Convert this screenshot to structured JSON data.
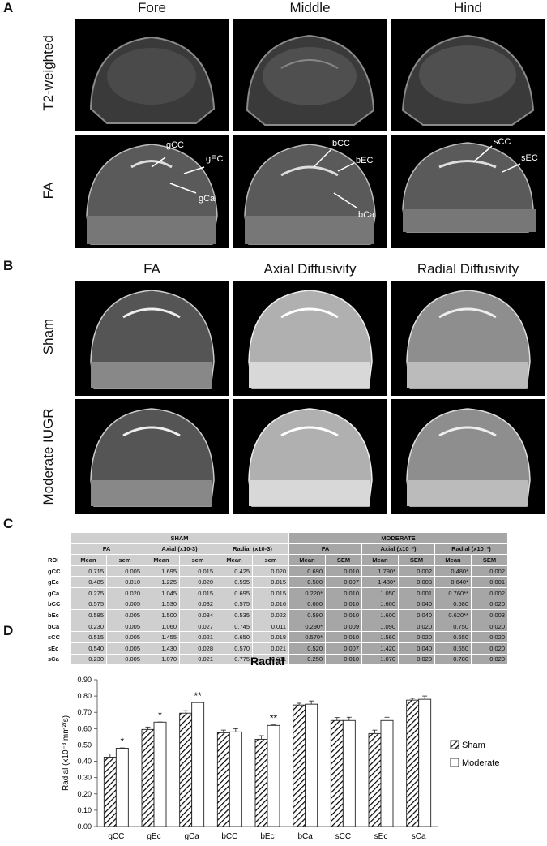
{
  "panel_labels": [
    "A",
    "B",
    "C",
    "D"
  ],
  "section_a": {
    "columns": [
      "Fore",
      "Middle",
      "Hind"
    ],
    "rows": [
      "T2-weighted",
      "FA"
    ],
    "annotations": {
      "fore": [
        "gCC",
        "gEC",
        "gCa"
      ],
      "middle": [
        "bCC",
        "bEC",
        "bCa"
      ],
      "hind": [
        "sCC",
        "sEC"
      ]
    }
  },
  "section_b": {
    "columns": [
      "FA",
      "Axial Diffusivity",
      "Radial Diffusivity"
    ],
    "rows": [
      "Sham",
      "Moderate IUGR"
    ]
  },
  "table": {
    "group_headers": [
      "SHAM",
      "MODERATE"
    ],
    "sham_metrics": [
      "FA",
      "Axial (x10-3)",
      "Radial (x10-3)"
    ],
    "moderate_metrics": [
      "FA",
      "Axial (x10⁻³)",
      "Radial (x10⁻³)"
    ],
    "sham_sub": [
      "Mean",
      "sem"
    ],
    "moderate_sub": [
      "Mean",
      "SEM"
    ],
    "roi_header": "ROI",
    "rows": [
      {
        "roi": "gCC",
        "sham": [
          "0.715",
          "0.005",
          "1.695",
          "0.015",
          "0.425",
          "0.020"
        ],
        "mod": [
          "0.690",
          "0.010",
          "1.790*",
          "0.002",
          "0.480*",
          "0.002"
        ]
      },
      {
        "roi": "gEc",
        "sham": [
          "0.485",
          "0.010",
          "1.225",
          "0.020",
          "0.595",
          "0.015"
        ],
        "mod": [
          "0.500",
          "0.007",
          "1.430*",
          "0.003",
          "0.640*",
          "0.001"
        ]
      },
      {
        "roi": "gCa",
        "sham": [
          "0.275",
          "0.020",
          "1.045",
          "0.015",
          "0.695",
          "0.015"
        ],
        "mod": [
          "0.220*",
          "0.010",
          "1.050",
          "0.001",
          "0.760**",
          "0.002"
        ]
      },
      {
        "roi": "bCC",
        "sham": [
          "0.575",
          "0.005",
          "1.530",
          "0.032",
          "0.575",
          "0.016"
        ],
        "mod": [
          "0.600",
          "0.010",
          "1.600",
          "0.040",
          "0.580",
          "0.020"
        ]
      },
      {
        "roi": "bEc",
        "sham": [
          "0.585",
          "0.005",
          "1.500",
          "0.034",
          "0.535",
          "0.022"
        ],
        "mod": [
          "0.590",
          "0.010",
          "1.600",
          "0.040",
          "0.620**",
          "0.003"
        ]
      },
      {
        "roi": "bCa",
        "sham": [
          "0.230",
          "0.005",
          "1.060",
          "0.027",
          "0.745",
          "0.011"
        ],
        "mod": [
          "0.290*",
          "0.009",
          "1.090",
          "0.020",
          "0.750",
          "0.020"
        ]
      },
      {
        "roi": "sCC",
        "sham": [
          "0.515",
          "0.005",
          "1.455",
          "0.021",
          "0.650",
          "0.018"
        ],
        "mod": [
          "0.570*",
          "0.010",
          "1.560",
          "0.020",
          "0.650",
          "0.020"
        ]
      },
      {
        "roi": "sEc",
        "sham": [
          "0.540",
          "0.005",
          "1.430",
          "0.028",
          "0.570",
          "0.021"
        ],
        "mod": [
          "0.520",
          "0.007",
          "1.420",
          "0.040",
          "0.650",
          "0.020"
        ]
      },
      {
        "roi": "sCa",
        "sham": [
          "0.230",
          "0.005",
          "1.070",
          "0.021",
          "0.775",
          "0.011"
        ],
        "mod": [
          "0.250",
          "0.010",
          "1.070",
          "0.020",
          "0.780",
          "0.020"
        ]
      }
    ]
  },
  "chart_data": {
    "type": "bar",
    "title": "Radial",
    "ylabel": "Radial (x10⁻³ mm²/s)",
    "categories": [
      "gCC",
      "gEc",
      "gCa",
      "bCC",
      "bEc",
      "bCa",
      "sCC",
      "sEc",
      "sCa"
    ],
    "ylim": [
      0,
      0.9
    ],
    "yticks": [
      "0.00",
      "0.10",
      "0.20",
      "0.30",
      "0.40",
      "0.50",
      "0.60",
      "0.70",
      "0.80",
      "0.90"
    ],
    "legend_position": "right",
    "series": [
      {
        "name": "Sham",
        "pattern": "hatched",
        "values": [
          0.425,
          0.595,
          0.695,
          0.575,
          0.535,
          0.745,
          0.65,
          0.57,
          0.775
        ],
        "errors": [
          0.02,
          0.015,
          0.015,
          0.016,
          0.022,
          0.011,
          0.018,
          0.021,
          0.011
        ]
      },
      {
        "name": "Moderate",
        "pattern": "white",
        "values": [
          0.48,
          0.64,
          0.76,
          0.58,
          0.62,
          0.75,
          0.65,
          0.65,
          0.78
        ],
        "errors": [
          0.002,
          0.001,
          0.002,
          0.02,
          0.003,
          0.02,
          0.02,
          0.02,
          0.02
        ]
      }
    ],
    "significance": [
      "*",
      "*",
      "**",
      "",
      "**",
      "",
      "",
      "",
      ""
    ]
  }
}
